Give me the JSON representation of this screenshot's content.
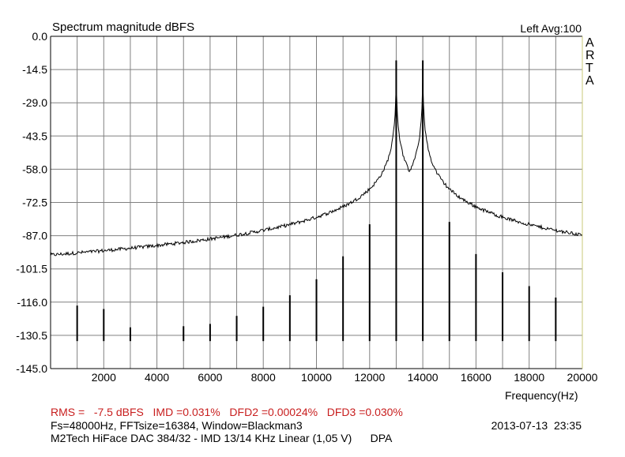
{
  "header": {
    "title": "Spectrum magnitude dBFS",
    "channel_info": "Left  Avg:100",
    "brand_letters": [
      "A",
      "R",
      "T",
      "A"
    ]
  },
  "footer": {
    "stats": "RMS =   -7.5 dBFS   IMD =0.031%   DFD2 =0.00024%   DFD3 =0.030%",
    "fft_params": "Fs=48000Hz, FFTsize=16384, Window=Blackman3",
    "datetime": "2013-07-13  23:35",
    "description": "M2Tech HiFace DAC 384/32 - IMD 13/14 KHz Linear (1,05 V)      DPA"
  },
  "colors": {
    "stats_text": "#c81e1e",
    "trace": "#000000",
    "grid": "#808080",
    "frame_right": "#c8c878"
  },
  "chart_data": {
    "type": "line",
    "title": "Spectrum magnitude dBFS",
    "xlabel": "Frequency(Hz)",
    "ylabel": "",
    "xlim": [
      0,
      20000
    ],
    "ylim": [
      -145,
      0
    ],
    "x_ticks": [
      "2000",
      "4000",
      "6000",
      "8000",
      "10000",
      "12000",
      "14000",
      "16000",
      "18000",
      "20000"
    ],
    "y_ticks": [
      "0.0",
      "-14.5",
      "-29.0",
      "-43.5",
      "-58.0",
      "-72.5",
      "-87.0",
      "-101.5",
      "-116.0",
      "-130.5",
      "-145.0"
    ],
    "grid": true,
    "noise_floor_dB": -133,
    "peaks": [
      {
        "freq": 1000,
        "db": -117.5
      },
      {
        "freq": 2000,
        "db": -119
      },
      {
        "freq": 3000,
        "db": -127
      },
      {
        "freq": 5000,
        "db": -126.5
      },
      {
        "freq": 6000,
        "db": -125.5
      },
      {
        "freq": 7000,
        "db": -122
      },
      {
        "freq": 8000,
        "db": -118
      },
      {
        "freq": 9000,
        "db": -113
      },
      {
        "freq": 10000,
        "db": -106
      },
      {
        "freq": 11000,
        "db": -96
      },
      {
        "freq": 12000,
        "db": -82
      },
      {
        "freq": 13000,
        "db": -10.5
      },
      {
        "freq": 14000,
        "db": -10.5
      },
      {
        "freq": 15000,
        "db": -81
      },
      {
        "freq": 16000,
        "db": -95
      },
      {
        "freq": 17000,
        "db": -103
      },
      {
        "freq": 18000,
        "db": -109
      },
      {
        "freq": 19000,
        "db": -114
      }
    ]
  }
}
